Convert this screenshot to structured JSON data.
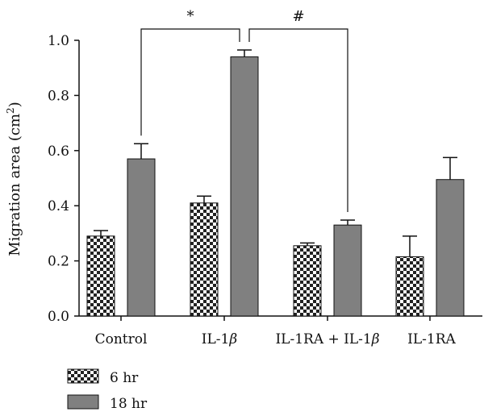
{
  "chart_data": {
    "type": "bar",
    "ylabel": "Migration area (cm",
    "ylabel_superscript": "2",
    "ylabel_suffix": ")",
    "ylim": [
      0,
      1.0
    ],
    "yticks": [
      "0.0",
      "0.2",
      "0.4",
      "0.6",
      "0.8",
      "1.0"
    ],
    "categories": [
      "Control",
      "IL-1",
      "IL-1RA + IL-1",
      "IL-1RA"
    ],
    "category_suffix_symbol": [
      "",
      "β",
      "β",
      ""
    ],
    "series": [
      {
        "name": "6 hr",
        "pattern": "checkered",
        "values": [
          0.29,
          0.41,
          0.255,
          0.215
        ],
        "errors": [
          0.02,
          0.025,
          0.01,
          0.075
        ]
      },
      {
        "name": "18 hr",
        "pattern": "solid",
        "values": [
          0.57,
          0.94,
          0.33,
          0.495
        ],
        "errors": [
          0.055,
          0.025,
          0.018,
          0.08
        ]
      }
    ],
    "significance": [
      {
        "label": "*",
        "from": {
          "category": 0,
          "series": 1
        },
        "to": {
          "category": 1,
          "series": 1
        }
      },
      {
        "label": "#",
        "from": {
          "category": 1,
          "series": 1
        },
        "to": {
          "category": 2,
          "series": 1
        }
      }
    ],
    "legend_position": "bottom-left",
    "grid": false
  },
  "colors": {
    "bar_solid": "#808080",
    "checker_dark": "#222222",
    "checker_light": "#ffffff",
    "axis": "#111111"
  }
}
